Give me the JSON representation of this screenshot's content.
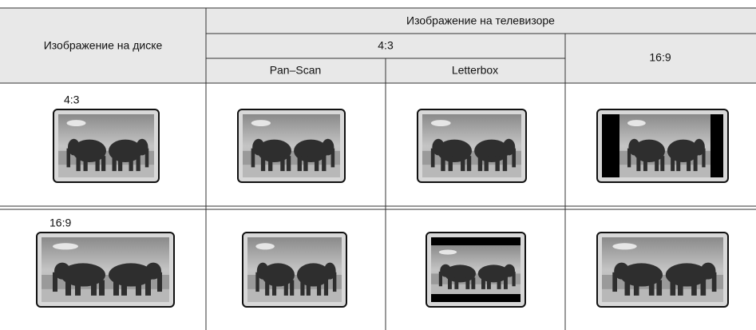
{
  "table": {
    "header": {
      "disc": "Изображение на диске",
      "tv": "Изображение на телевизоре",
      "tv_43": "4:3",
      "tv_169": "16:9",
      "pan_scan": "Pan–Scan",
      "letterbox": "Letterbox"
    },
    "rows": [
      {
        "label": "4:3"
      },
      {
        "label": "16:9"
      }
    ]
  }
}
